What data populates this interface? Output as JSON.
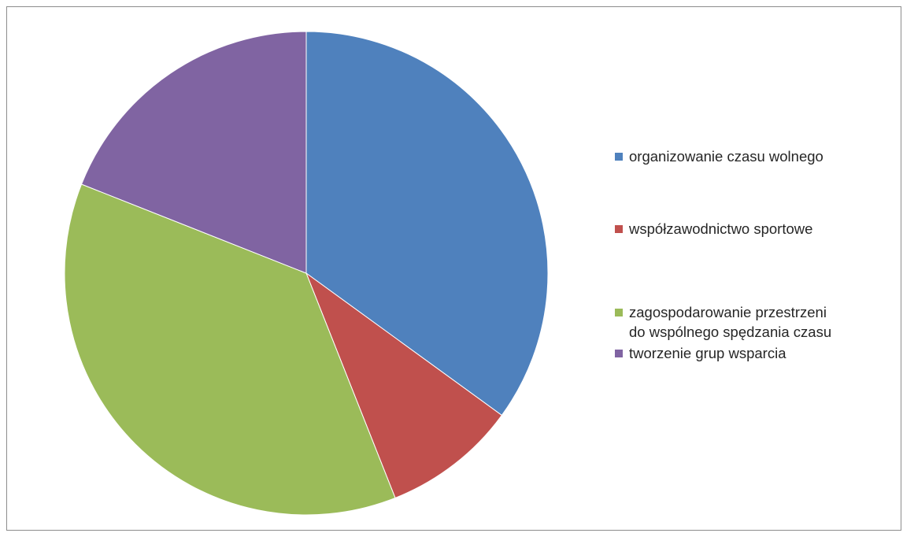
{
  "chart_data": {
    "type": "pie",
    "slices": [
      {
        "label": "organizowanie czasu wolnego",
        "value": 35,
        "color": "#4F81BD"
      },
      {
        "label": "współzawodnictwo sportowe",
        "value": 9,
        "color": "#C0504D"
      },
      {
        "label": "zagospodarowanie przestrzeni\ndo wspólnego spędzania czasu",
        "value": 37,
        "color": "#9BBB59"
      },
      {
        "label": "tworzenie grup wsparcia",
        "value": 19,
        "color": "#8064A2"
      }
    ],
    "legend_position": "right"
  }
}
